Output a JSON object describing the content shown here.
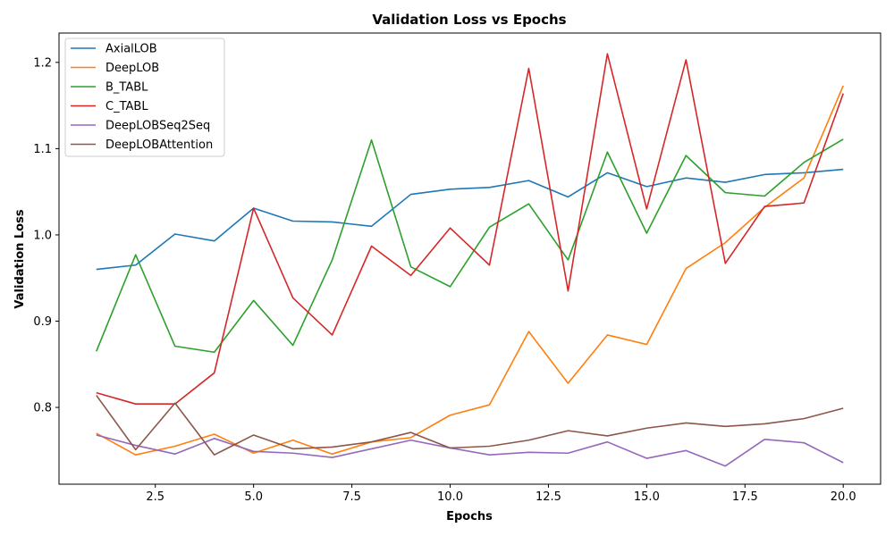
{
  "chart_data": {
    "type": "line",
    "title": "Validation Loss vs Epochs",
    "xlabel": "Epochs",
    "ylabel": "Validation Loss",
    "xlim": [
      0.05,
      20.95
    ],
    "ylim": [
      0.711,
      1.234
    ],
    "xticks": [
      2.5,
      5.0,
      7.5,
      10.0,
      12.5,
      15.0,
      17.5,
      20.0
    ],
    "xtick_labels": [
      "2.5",
      "5.0",
      "7.5",
      "10.0",
      "12.5",
      "15.0",
      "17.5",
      "20.0"
    ],
    "yticks": [
      0.8,
      0.9,
      1.0,
      1.1,
      1.2
    ],
    "ytick_labels": [
      "0.8",
      "0.9",
      "1.0",
      "1.1",
      "1.2"
    ],
    "grid": false,
    "legend_position": "top-left",
    "x": [
      1,
      2,
      3,
      4,
      5,
      6,
      7,
      8,
      9,
      10,
      11,
      12,
      13,
      14,
      15,
      16,
      17,
      18,
      19,
      20
    ],
    "series": [
      {
        "name": "AxialLOB",
        "color": "#1f77b4",
        "values": [
          0.96,
          0.965,
          1.001,
          0.993,
          1.031,
          1.016,
          1.015,
          1.01,
          1.047,
          1.053,
          1.055,
          1.063,
          1.044,
          1.072,
          1.056,
          1.066,
          1.061,
          1.07,
          1.072,
          1.076
        ]
      },
      {
        "name": "DeepLOB",
        "color": "#ff7f0e",
        "values": [
          0.77,
          0.745,
          0.755,
          0.769,
          0.747,
          0.762,
          0.746,
          0.76,
          0.765,
          0.791,
          0.803,
          0.888,
          0.828,
          0.884,
          0.873,
          0.961,
          0.991,
          1.032,
          1.066,
          1.173
        ]
      },
      {
        "name": "B_TABL",
        "color": "#2ca02c",
        "values": [
          0.865,
          0.977,
          0.871,
          0.864,
          0.924,
          0.872,
          0.971,
          1.11,
          0.963,
          0.94,
          1.009,
          1.036,
          0.971,
          1.096,
          1.002,
          1.092,
          1.049,
          1.045,
          1.084,
          1.111
        ]
      },
      {
        "name": "C_TABL",
        "color": "#d62728",
        "values": [
          0.817,
          0.804,
          0.804,
          0.84,
          1.031,
          0.927,
          0.884,
          0.987,
          0.953,
          1.008,
          0.965,
          1.193,
          0.935,
          1.21,
          1.03,
          1.203,
          0.967,
          1.033,
          1.037,
          1.164
        ]
      },
      {
        "name": "DeepLOBSeq2Seq",
        "color": "#9467bd",
        "values": [
          0.768,
          0.756,
          0.746,
          0.764,
          0.749,
          0.747,
          0.742,
          0.752,
          0.762,
          0.753,
          0.745,
          0.748,
          0.747,
          0.76,
          0.741,
          0.75,
          0.732,
          0.763,
          0.759,
          0.736
        ]
      },
      {
        "name": "DeepLOBAttention",
        "color": "#8c564b",
        "values": [
          0.814,
          0.751,
          0.805,
          0.745,
          0.768,
          0.752,
          0.754,
          0.76,
          0.771,
          0.753,
          0.755,
          0.762,
          0.773,
          0.767,
          0.776,
          0.782,
          0.778,
          0.781,
          0.787,
          0.799
        ]
      }
    ]
  }
}
